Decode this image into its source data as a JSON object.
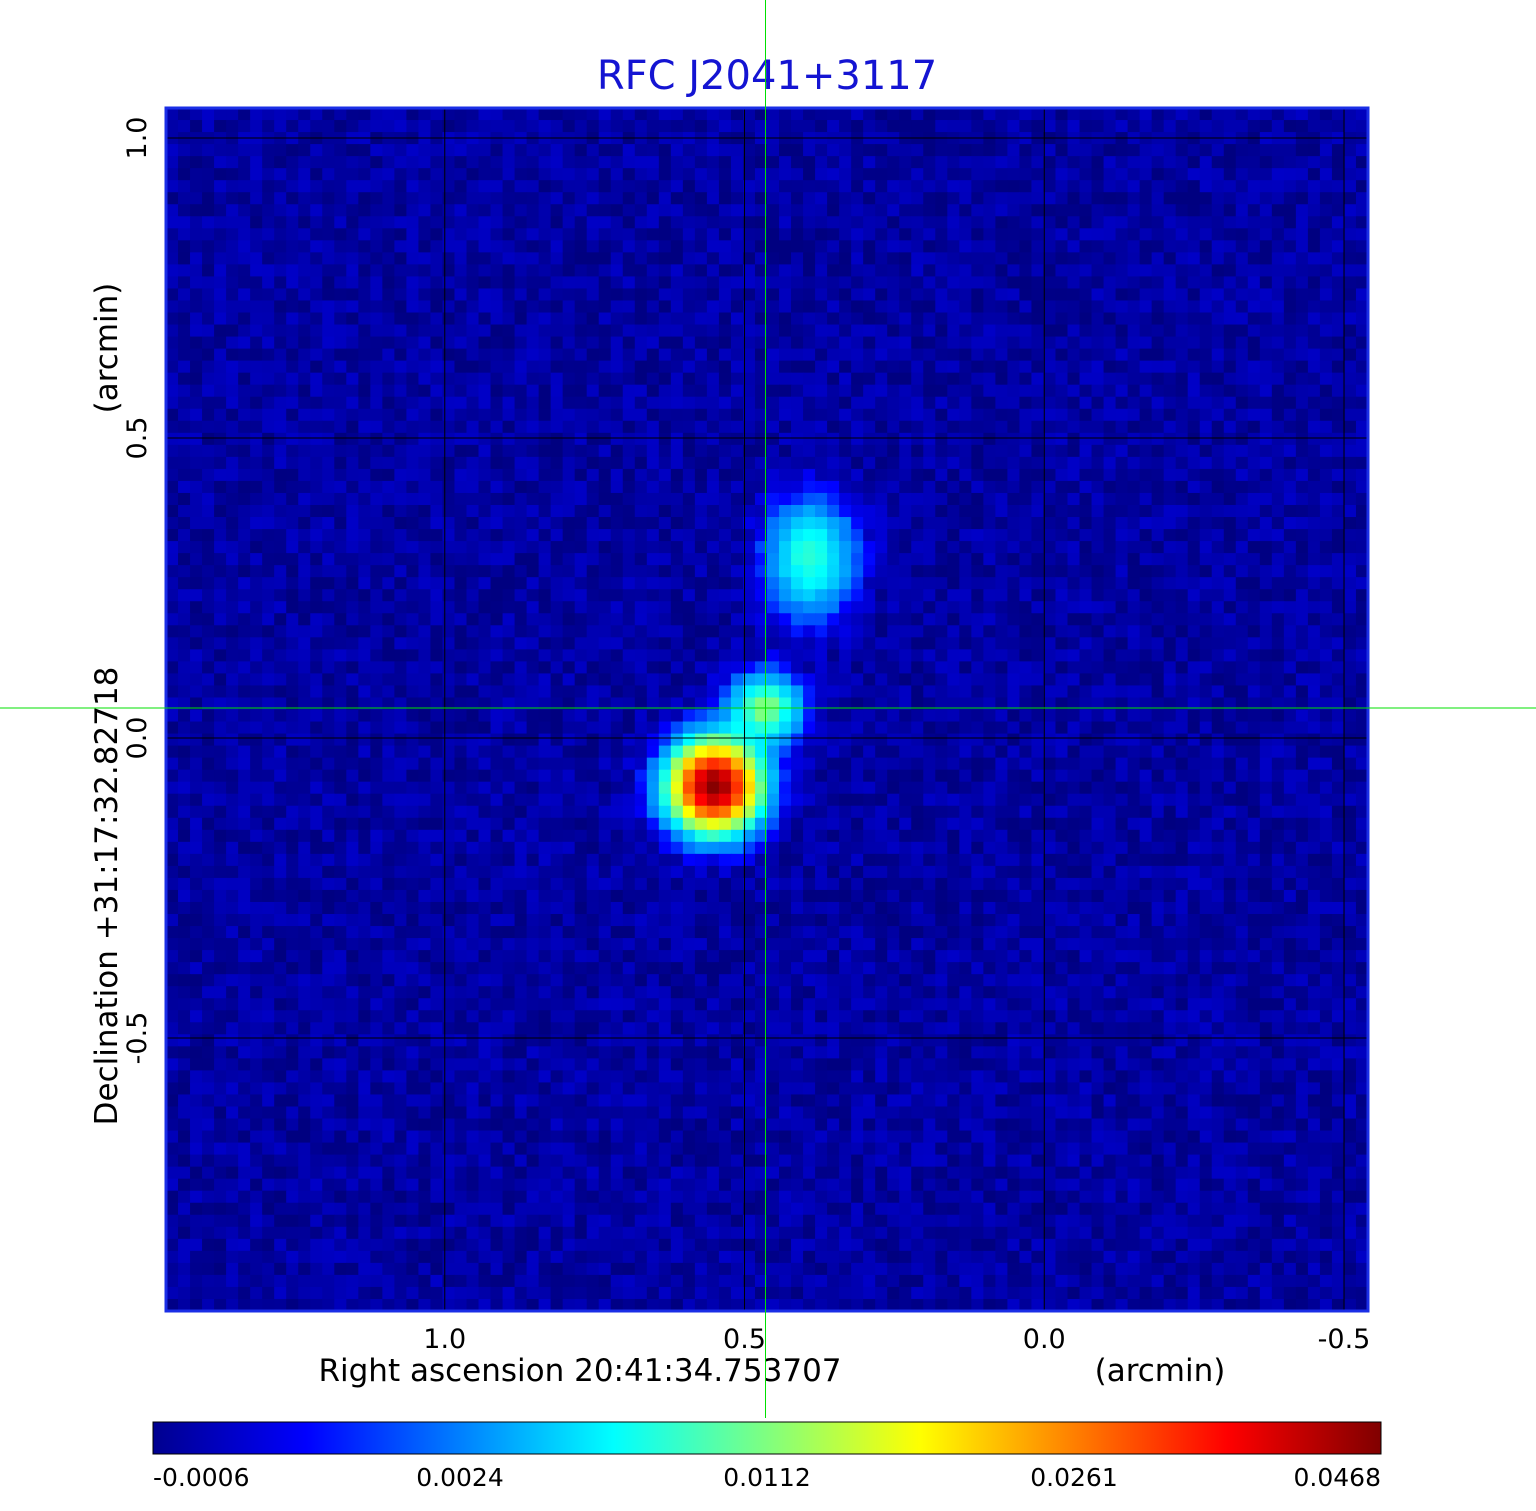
{
  "chart_data": {
    "type": "heatmap",
    "title": "RFC J2041+3117",
    "xlabel": "Right ascension  20:41:34.753707",
    "xunit": "(arcmin)",
    "ylabel": "Declination  +31:17:32.82718",
    "yunit": "(arcmin)",
    "x_ticks": [
      {
        "value": 1.0,
        "label": "1.0"
      },
      {
        "value": 0.5,
        "label": "0.5"
      },
      {
        "value": 0.0,
        "label": "0.0"
      },
      {
        "value": -0.5,
        "label": "-0.5"
      }
    ],
    "y_ticks": [
      {
        "value": 1.0,
        "label": "1.0"
      },
      {
        "value": 0.5,
        "label": "0.5"
      },
      {
        "value": 0.0,
        "label": "0.0"
      },
      {
        "value": -0.5,
        "label": "-0.5"
      }
    ],
    "xlim": [
      1.465,
      -0.54
    ],
    "ylim": [
      -0.955,
      1.05
    ],
    "crosshair": {
      "x": 0.465,
      "y": 0.05
    },
    "colormap": "jet",
    "colorbar": {
      "ticks": [
        {
          "value": -0.0006,
          "label": "-0.0006"
        },
        {
          "value": 0.0024,
          "label": "0.0024"
        },
        {
          "value": 0.0112,
          "label": "0.0112"
        },
        {
          "value": 0.0261,
          "label": "0.0261"
        },
        {
          "value": 0.0468,
          "label": "0.0468"
        }
      ]
    },
    "sources": [
      {
        "x": 0.55,
        "y": -0.08,
        "peak": 0.0468
      },
      {
        "x": 0.465,
        "y": 0.05,
        "peak": 0.0115
      },
      {
        "x": 0.39,
        "y": 0.3,
        "peak": 0.0085
      }
    ],
    "background_level": -0.0002,
    "grid": true
  },
  "colors": {
    "title": "#1414d2",
    "crosshair": "#00e000",
    "grid": "#000000",
    "frame": "#1a2ee6"
  }
}
